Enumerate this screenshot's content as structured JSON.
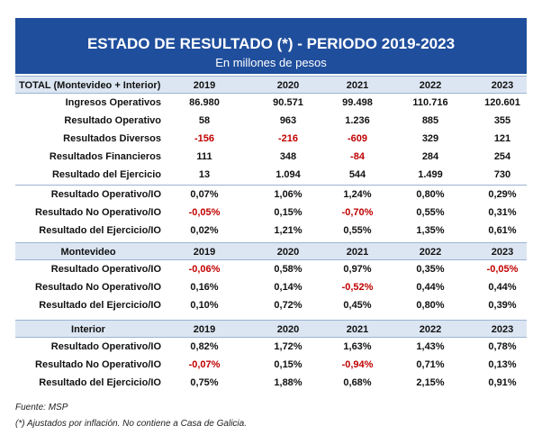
{
  "title": "ESTADO DE RESULTADO (*) - PERIODO 2019-2023",
  "subtitle": "En millones de pesos",
  "years": [
    "2019",
    "2020",
    "2021",
    "2022",
    "2023"
  ],
  "total": {
    "header": "TOTAL (Montevideo + Interior)",
    "rows": [
      {
        "label": "Ingresos Operativos",
        "values": [
          "86.980",
          "90.571",
          "99.498",
          "110.716",
          "120.601"
        ]
      },
      {
        "label": "Resultado Operativo",
        "values": [
          "58",
          "963",
          "1.236",
          "885",
          "355"
        ]
      },
      {
        "label": "Resultados Diversos",
        "values": [
          "-156",
          "-216",
          "-609",
          "329",
          "121"
        ]
      },
      {
        "label": "Resultados Financieros",
        "values": [
          "111",
          "348",
          "-84",
          "284",
          "254"
        ]
      },
      {
        "label": "Resultado del Ejercicio",
        "values": [
          "13",
          "1.094",
          "544",
          "1.499",
          "730"
        ]
      }
    ],
    "ratios": [
      {
        "label": "Resultado Operativo/IO",
        "values": [
          "0,07%",
          "1,06%",
          "1,24%",
          "0,80%",
          "0,29%"
        ]
      },
      {
        "label": "Resultado No Operativo/IO",
        "values": [
          "-0,05%",
          "0,15%",
          "-0,70%",
          "0,55%",
          "0,31%"
        ]
      },
      {
        "label": "Resultado del Ejercicio/IO",
        "values": [
          "0,02%",
          "1,21%",
          "0,55%",
          "1,35%",
          "0,61%"
        ]
      }
    ]
  },
  "montevideo": {
    "header": "Montevideo",
    "rows": [
      {
        "label": "Resultado Operativo/IO",
        "values": [
          "-0,06%",
          "0,58%",
          "0,97%",
          "0,35%",
          "-0,05%"
        ]
      },
      {
        "label": "Resultado No Operativo/IO",
        "values": [
          "0,16%",
          "0,14%",
          "-0,52%",
          "0,44%",
          "0,44%"
        ]
      },
      {
        "label": "Resultado del Ejercicio/IO",
        "values": [
          "0,10%",
          "0,72%",
          "0,45%",
          "0,80%",
          "0,39%"
        ]
      }
    ]
  },
  "interior": {
    "header": "Interior",
    "rows": [
      {
        "label": "Resultado Operativo/IO",
        "values": [
          "0,82%",
          "1,72%",
          "1,63%",
          "1,43%",
          "0,78%"
        ]
      },
      {
        "label": "Resultado No Operativo/IO",
        "values": [
          "-0,07%",
          "0,15%",
          "-0,94%",
          "0,71%",
          "0,13%"
        ]
      },
      {
        "label": "Resultado del Ejercicio/IO",
        "values": [
          "0,75%",
          "1,88%",
          "0,68%",
          "2,15%",
          "0,91%"
        ]
      }
    ]
  },
  "footnotes": {
    "source": "Fuente: MSP",
    "note": "(*) Ajustados por inflación. No contiene a Casa de Galicia."
  },
  "colors": {
    "banner": "#1f4e9c",
    "header_band": "#dce6f2",
    "negative": "#c00000"
  }
}
